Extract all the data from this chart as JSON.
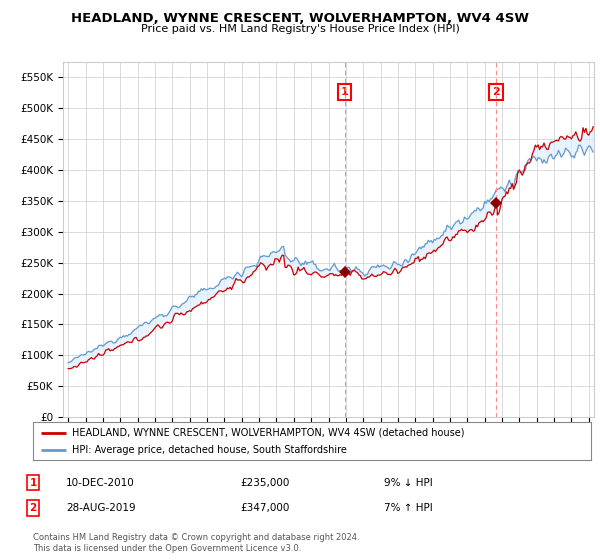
{
  "title": "HEADLAND, WYNNE CRESCENT, WOLVERHAMPTON, WV4 4SW",
  "subtitle": "Price paid vs. HM Land Registry's House Price Index (HPI)",
  "ylabel_ticks": [
    "£0",
    "£50K",
    "£100K",
    "£150K",
    "£200K",
    "£250K",
    "£300K",
    "£350K",
    "£400K",
    "£450K",
    "£500K",
    "£550K"
  ],
  "ytick_values": [
    0,
    50000,
    100000,
    150000,
    200000,
    250000,
    300000,
    350000,
    400000,
    450000,
    500000,
    550000
  ],
  "ylim": [
    0,
    575000
  ],
  "xlim_start": 1994.7,
  "xlim_end": 2025.3,
  "sale1_x": 2010.94,
  "sale1_y": 235000,
  "sale1_label": "1",
  "sale2_x": 2019.66,
  "sale2_y": 347000,
  "sale2_label": "2",
  "legend_line1": "HEADLAND, WYNNE CRESCENT, WOLVERHAMPTON, WV4 4SW (detached house)",
  "legend_line2": "HPI: Average price, detached house, South Staffordshire",
  "annotation1_num": "1",
  "annotation1_date": "10-DEC-2010",
  "annotation1_price": "£235,000",
  "annotation1_hpi": "9% ↓ HPI",
  "annotation2_num": "2",
  "annotation2_date": "28-AUG-2019",
  "annotation2_price": "£347,000",
  "annotation2_hpi": "7% ↑ HPI",
  "footnote": "Contains HM Land Registry data © Crown copyright and database right 2024.\nThis data is licensed under the Open Government Licence v3.0.",
  "line_color_property": "#cc0000",
  "line_color_hpi": "#6699cc",
  "fill_color": "#ddeeff",
  "vline_color": "#ff8888",
  "plot_bg_color": "#ffffff",
  "grid_color": "#cccccc"
}
